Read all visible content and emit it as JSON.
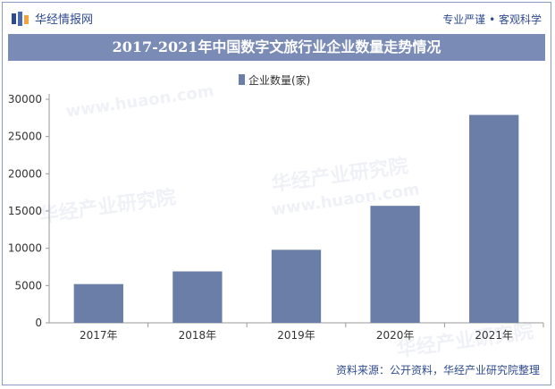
{
  "header": {
    "brand": "华经情报网",
    "slogan": "专业严谨 • 客观科学"
  },
  "title": "2017-2021年中国数字文旅行业企业数量走势情况",
  "footer": {
    "source": "资料来源：公开资料，华经产业研究院整理"
  },
  "watermark": {
    "text_cn": "华经产业研究院",
    "text_en": "www.huaon.com"
  },
  "colors": {
    "bar": "#6b7ea8",
    "title_bg": "#7a8bb6",
    "brand": "#2e4a8f"
  },
  "chart_data": {
    "type": "bar",
    "categories": [
      "2017年",
      "2018年",
      "2019年",
      "2020年",
      "2021年"
    ],
    "series": [
      {
        "name": "企业数量(家)",
        "values": [
          5200,
          6900,
          9800,
          15700,
          27900
        ]
      }
    ],
    "ylim": [
      0,
      30000
    ],
    "yticks": [
      0,
      5000,
      10000,
      15000,
      20000,
      25000,
      30000
    ],
    "legend_position": "top-center",
    "grid": false
  }
}
